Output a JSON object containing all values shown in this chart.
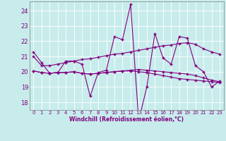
{
  "background_color": "#c8ecec",
  "grid_color": "#b0d8d8",
  "line_color": "#800080",
  "xlabel": "Windchill (Refroidissement éolien,°C)",
  "x_values": [
    0,
    1,
    2,
    3,
    4,
    5,
    6,
    7,
    8,
    9,
    10,
    11,
    12,
    13,
    14,
    15,
    16,
    17,
    18,
    19,
    20,
    21,
    22,
    23
  ],
  "series1": [
    21.3,
    20.6,
    19.9,
    19.95,
    20.7,
    20.7,
    20.5,
    18.4,
    19.95,
    20.1,
    22.3,
    22.1,
    24.4,
    16.8,
    19.0,
    22.5,
    20.9,
    20.5,
    22.3,
    22.2,
    20.4,
    20.0,
    19.0,
    19.4
  ],
  "series2": [
    21.0,
    20.4,
    20.4,
    20.5,
    20.6,
    20.7,
    20.8,
    20.85,
    20.95,
    21.05,
    21.15,
    21.2,
    21.3,
    21.4,
    21.5,
    21.6,
    21.7,
    21.75,
    21.85,
    21.9,
    21.8,
    21.5,
    21.3,
    21.15
  ],
  "series3": [
    20.05,
    19.95,
    19.9,
    19.95,
    19.95,
    20.0,
    19.9,
    19.85,
    19.9,
    19.95,
    20.0,
    20.05,
    20.1,
    20.15,
    20.1,
    20.05,
    20.0,
    19.95,
    19.9,
    19.85,
    19.75,
    19.6,
    19.45,
    19.35
  ],
  "series4": [
    20.05,
    19.95,
    19.9,
    19.95,
    19.95,
    20.0,
    19.9,
    19.85,
    19.9,
    19.95,
    20.0,
    20.05,
    20.05,
    20.0,
    19.95,
    19.85,
    19.75,
    19.65,
    19.55,
    19.5,
    19.45,
    19.4,
    19.35,
    19.3
  ],
  "ylim": [
    17.5,
    24.6
  ],
  "xlim": [
    -0.5,
    23.5
  ],
  "yticks": [
    18,
    19,
    20,
    21,
    22,
    23,
    24
  ],
  "xticks": [
    0,
    1,
    2,
    3,
    4,
    5,
    6,
    7,
    8,
    9,
    10,
    11,
    12,
    13,
    14,
    15,
    16,
    17,
    18,
    19,
    20,
    21,
    22,
    23
  ],
  "markersize": 2.5,
  "linewidth": 0.8
}
